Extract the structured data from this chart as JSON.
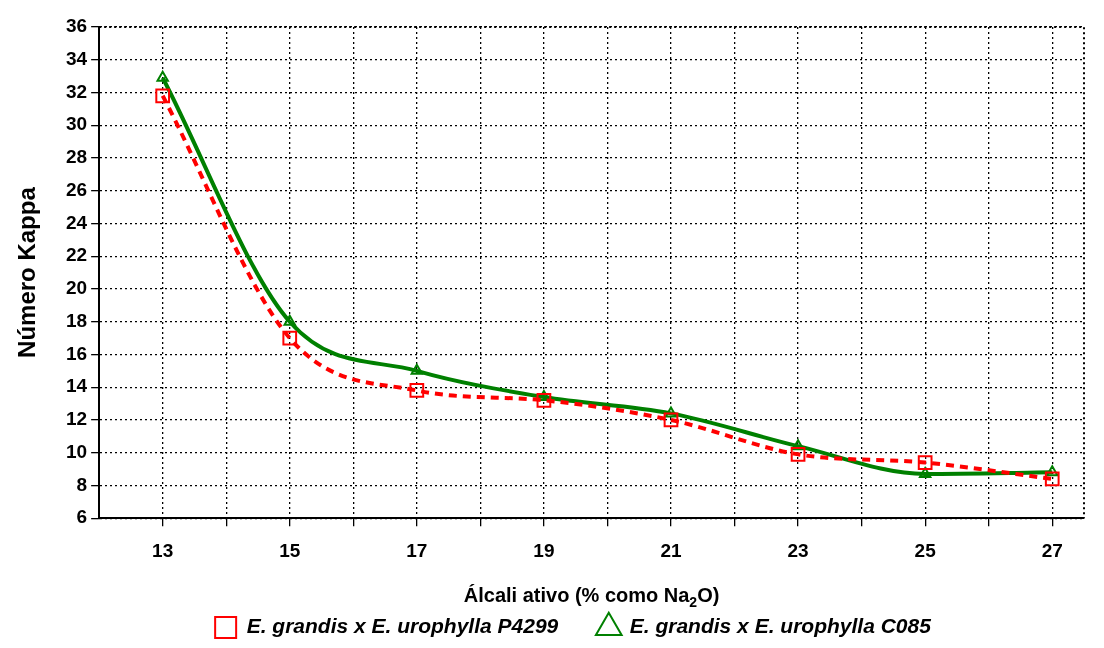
{
  "chart_data": {
    "type": "line",
    "xlabel": "Álcali ativo (% como Na$_{2}$O)",
    "ylabel": "Número Kappa",
    "x": [
      13,
      15,
      17,
      19,
      21,
      23,
      25,
      27
    ],
    "series": [
      {
        "name": "E. grandis x E. urophylla P4299",
        "color": "#ff0000",
        "marker": "square",
        "line_style": "dashed",
        "values": [
          31.8,
          17.0,
          13.8,
          13.2,
          12.0,
          9.9,
          9.4,
          8.4
        ]
      },
      {
        "name": "E. grandis x E. urophylla C085",
        "color": "#008000",
        "marker": "triangle",
        "line_style": "solid",
        "values": [
          32.9,
          18.0,
          15.0,
          13.4,
          12.4,
          10.4,
          8.7,
          8.8
        ]
      }
    ],
    "xlim": [
      12,
      27.5
    ],
    "xticks": [
      13,
      {
        "value": 14,
        "label": null
      },
      15,
      {
        "value": 16,
        "label": null
      },
      17,
      {
        "value": 18,
        "label": null
      },
      19,
      {
        "value": 20,
        "label": null
      },
      21,
      {
        "value": 22,
        "label": null
      },
      23,
      {
        "value": 24,
        "label": null
      },
      25,
      {
        "value": 26,
        "label": null
      },
      27
    ],
    "ylim": [
      6,
      36
    ],
    "yticks": [
      6,
      8,
      10,
      12,
      14,
      16,
      18,
      20,
      22,
      24,
      26,
      28,
      30,
      32,
      34,
      36
    ],
    "grid": true,
    "legend": "bottom"
  }
}
